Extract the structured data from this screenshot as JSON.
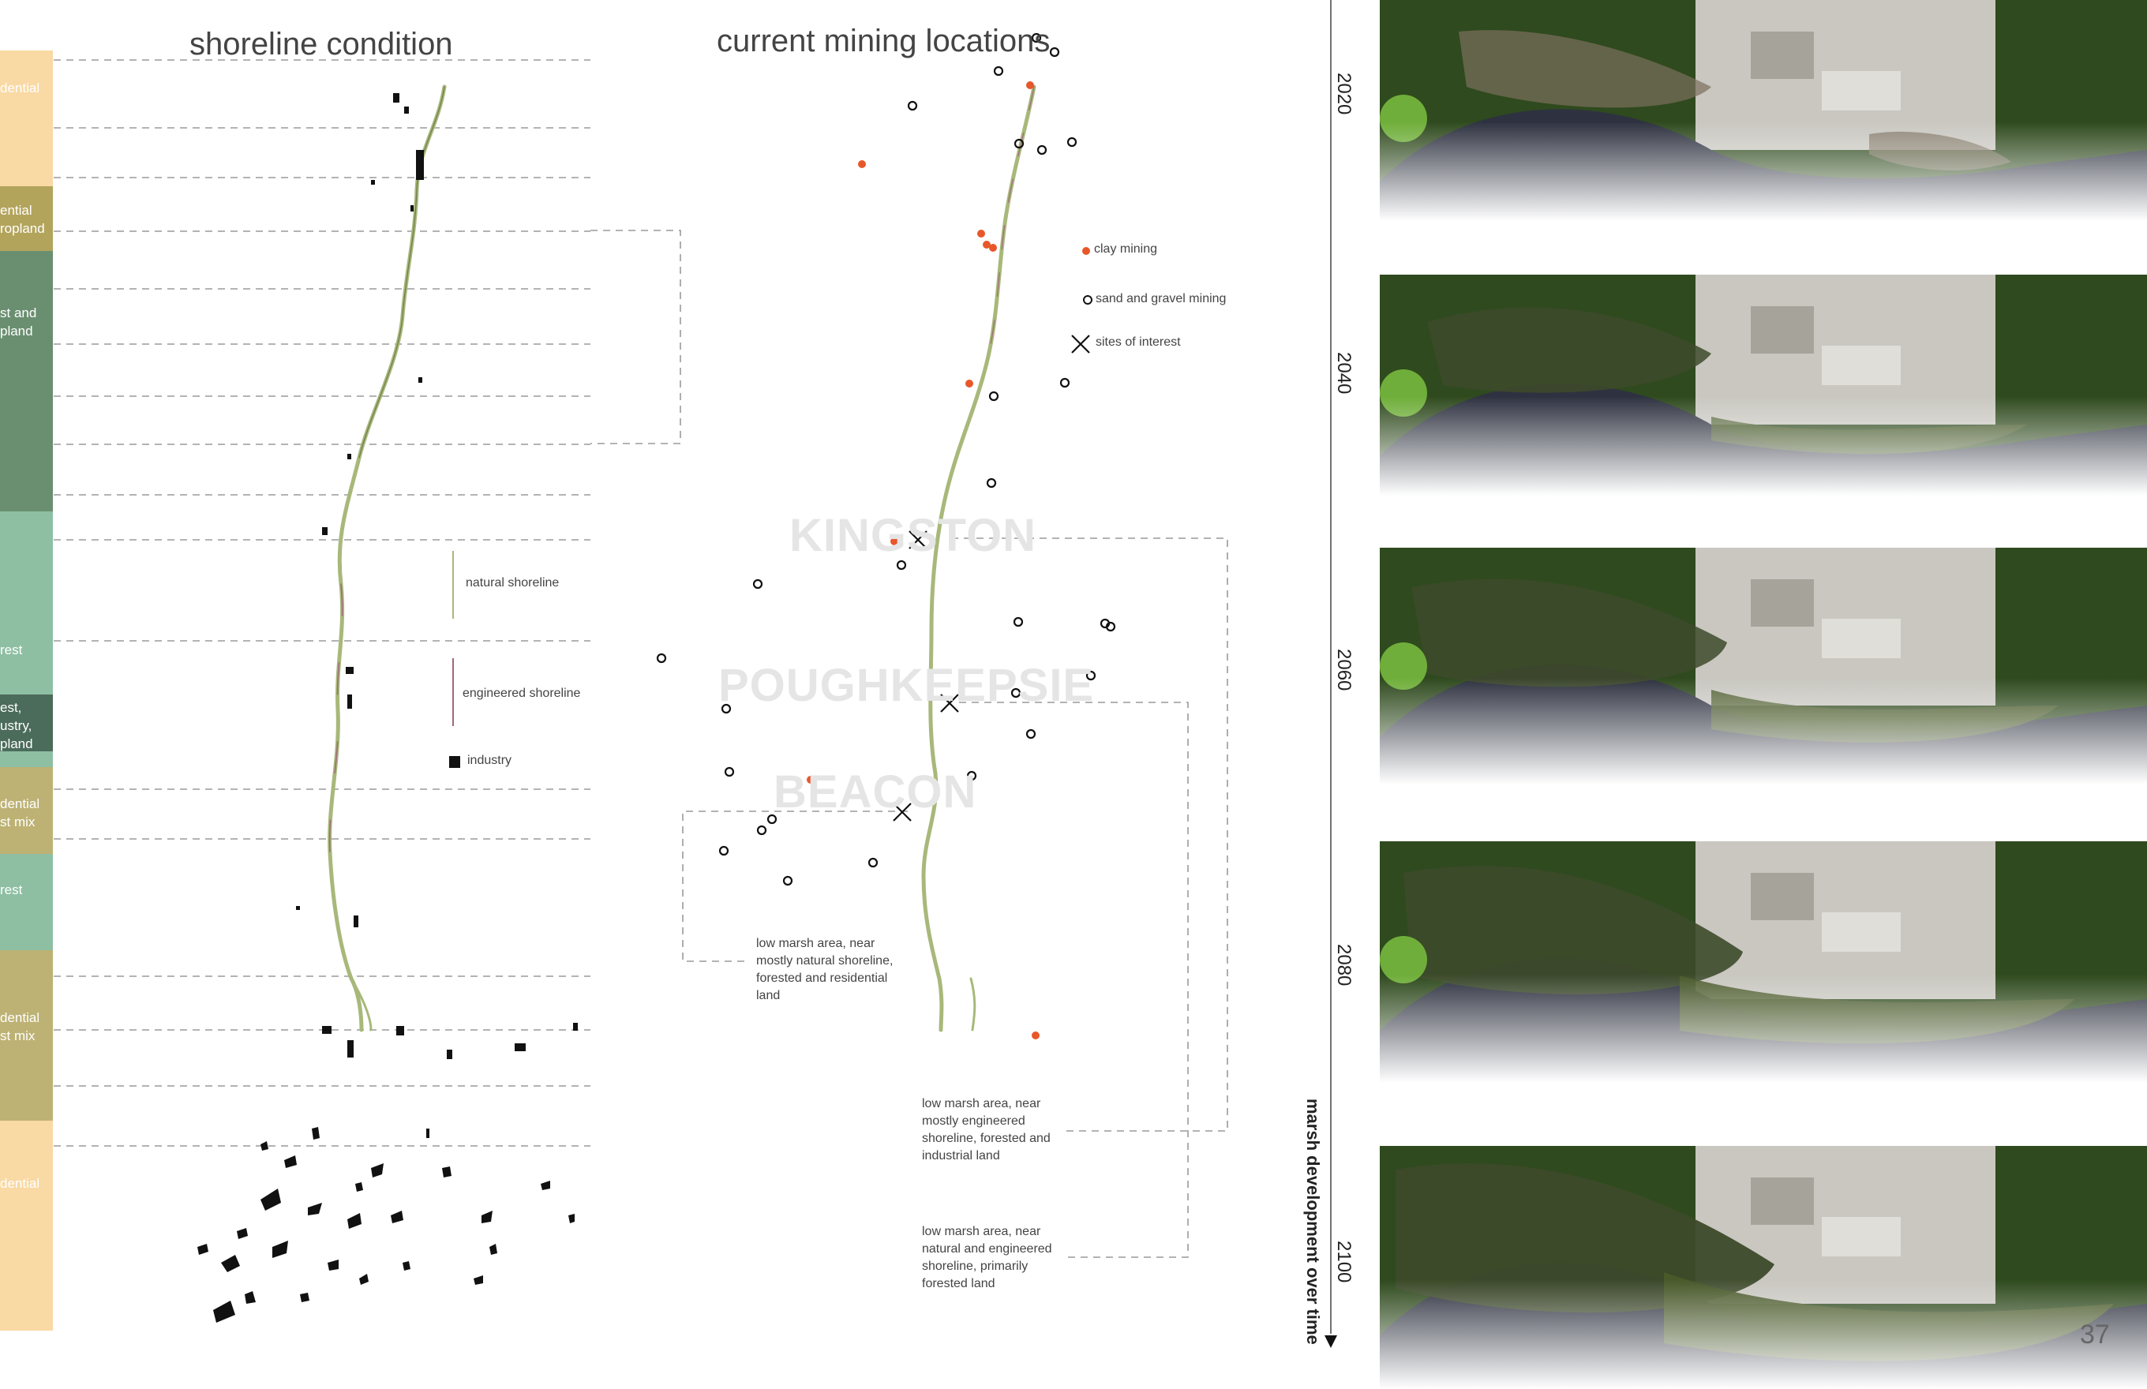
{
  "shoreline": {
    "title": "shoreline condition",
    "bands": [
      {
        "label": "dential",
        "color": "#f9d9a4"
      },
      {
        "label": "ential\nropland",
        "color": "#b3a45c"
      },
      {
        "label": "st and\npland",
        "color": "#6a8f70"
      },
      {
        "label": "rest",
        "color": "#8ebfa3"
      },
      {
        "label": "est,\nustry,\npland",
        "color": "#4b6b5b"
      },
      {
        "label": "dential\nst mix",
        "color": "#bdb274"
      },
      {
        "label": "rest",
        "color": "#8ebfa3"
      },
      {
        "label": "dential\nst mix",
        "color": "#bdb274"
      },
      {
        "label": "dential",
        "color": "#f9d9a4"
      }
    ],
    "legend": {
      "natural": "natural shoreline",
      "engineered": "engineered shoreline",
      "industry": "industry"
    }
  },
  "mining": {
    "title": "current mining locations",
    "legend": {
      "clay": "clay mining",
      "sand": "sand and gravel mining",
      "sites": "sites of interest"
    },
    "cities": [
      "KINGSTON",
      "POUGHKEEPSIE",
      "BEACON"
    ],
    "notes": [
      "low marsh area, near mostly natural shoreline, forested and residential land",
      "low marsh area, near mostly engineered shoreline, forested  and industrial land",
      "low marsh area, near natural and engineered shoreline, primarily forested land"
    ]
  },
  "timeline": {
    "years": [
      "2020",
      "2040",
      "2060",
      "2080",
      "2100"
    ],
    "label": "marsh development over time",
    "page_number": "37"
  },
  "colors": {
    "clay": "#e8572a",
    "natural": "#a8b87a",
    "engineered": "#9e6a78",
    "water": "#2e3240",
    "forest": "#2f4a1e",
    "quarry": "#c9c7c0"
  }
}
